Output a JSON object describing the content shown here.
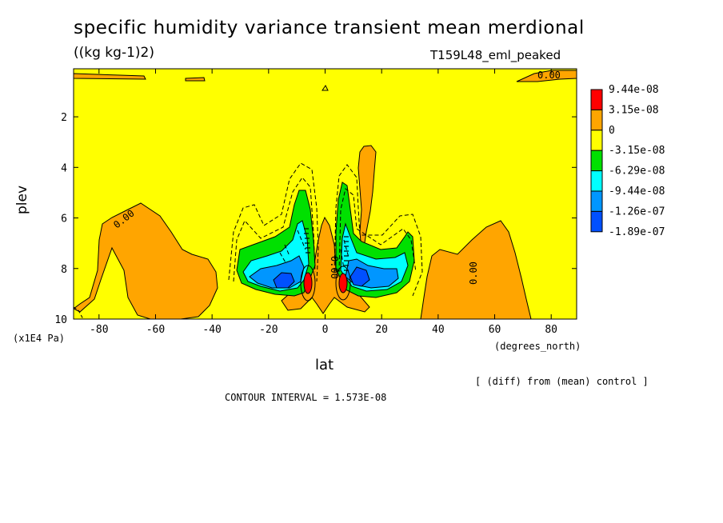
{
  "chart_data": {
    "type": "contour",
    "title": "specific humidity variance transient mean merdional",
    "units": "((kg kg-1)2)",
    "run_label": "T159L48_eml_peaked",
    "xlabel": "lat",
    "xunit": "(degrees_north)",
    "ylabel": "plev",
    "yunit": "(x1E4 Pa)",
    "xlim": [
      -89,
      89
    ],
    "ylim": [
      10,
      0.1
    ],
    "x_ticks": [
      -80,
      -60,
      -40,
      -20,
      0,
      20,
      40,
      60,
      80
    ],
    "y_ticks": [
      2,
      4,
      6,
      8,
      10
    ],
    "contour_labels": [
      "0.00",
      "0.00",
      "0.00",
      "0.00"
    ],
    "legend": {
      "labels": [
        "9.44e-08",
        "3.15e-08",
        "0",
        "-3.15e-08",
        "-6.29e-08",
        "-9.44e-08",
        "-1.26e-07",
        "-1.89e-07"
      ],
      "colors": [
        "#ff0000",
        "#ffa500",
        "#ffff00",
        "#00e000",
        "#00ffff",
        "#0096ff",
        "#0050ff"
      ]
    },
    "note": "[ (diff) from (mean) control ]",
    "contour_interval": "CONTOUR INTERVAL = 1.573E-08"
  }
}
